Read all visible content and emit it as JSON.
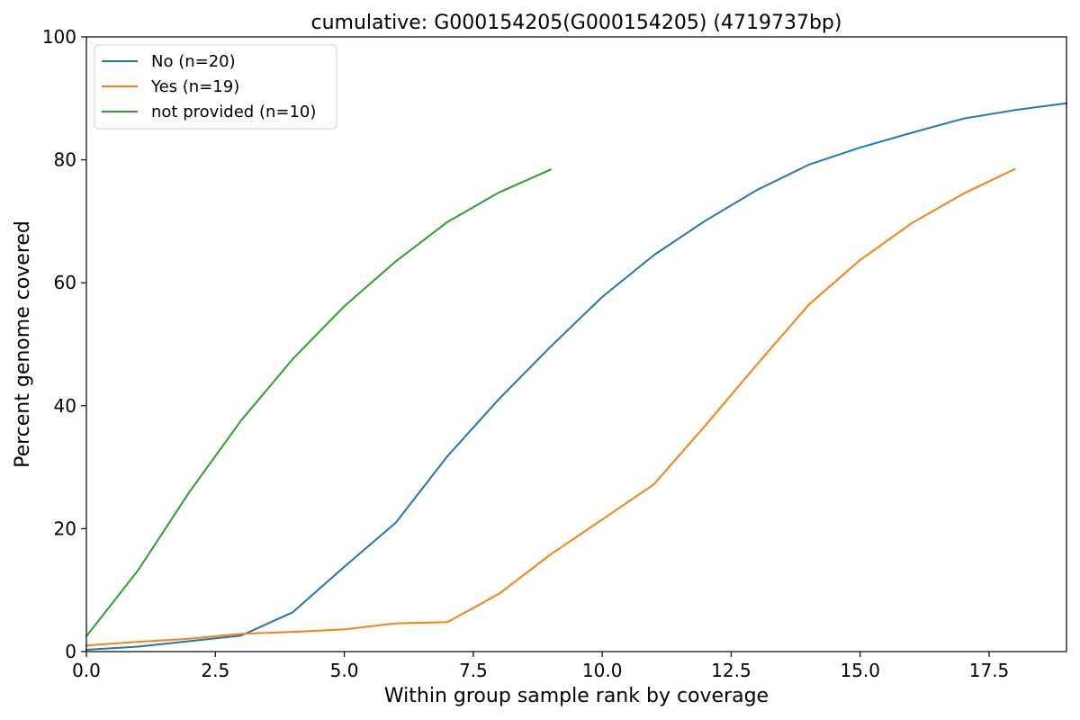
{
  "chart_data": {
    "type": "line",
    "title": "cumulative: G000154205(G000154205) (4719737bp)",
    "xlabel": "Within group sample rank by coverage",
    "ylabel": "Percent genome covered",
    "xlim": [
      0,
      19
    ],
    "ylim": [
      0,
      100
    ],
    "xticks": [
      "0.0",
      "2.5",
      "5.0",
      "7.5",
      "10.0",
      "12.5",
      "15.0",
      "17.5"
    ],
    "yticks": [
      "0",
      "20",
      "40",
      "60",
      "80",
      "100"
    ],
    "grid": false,
    "legend_position": "top-left",
    "series": [
      {
        "name": "No (n=20)",
        "color": "#1f77b4",
        "x": [
          0,
          1,
          2,
          3,
          4,
          5,
          6,
          7,
          8,
          9,
          10,
          11,
          12,
          13,
          14,
          15,
          16,
          17,
          18,
          19
        ],
        "y": [
          0.3,
          0.8,
          1.7,
          2.6,
          6.4,
          13.8,
          21.0,
          31.8,
          41.1,
          49.6,
          57.7,
          64.5,
          70.1,
          75.1,
          79.2,
          82.0,
          84.4,
          86.7,
          88.1,
          89.2
        ]
      },
      {
        "name": "Yes (n=19)",
        "color": "#ff7f0e",
        "x": [
          0,
          1,
          2,
          3,
          4,
          5,
          6,
          7,
          8,
          9,
          10,
          11,
          12,
          13,
          14,
          15,
          16,
          17,
          18
        ],
        "y": [
          1.0,
          1.6,
          2.1,
          2.9,
          3.2,
          3.6,
          4.6,
          4.8,
          9.4,
          15.8,
          21.5,
          27.2,
          36.8,
          46.7,
          56.4,
          63.7,
          69.7,
          74.5,
          78.5
        ]
      },
      {
        "name": "not provided (n=10)",
        "color": "#2ca02c",
        "x": [
          0,
          1,
          2,
          3,
          4,
          5,
          6,
          7,
          8,
          9
        ],
        "y": [
          2.5,
          13.2,
          26.0,
          37.6,
          47.6,
          56.2,
          63.5,
          69.9,
          74.7,
          78.4
        ]
      }
    ]
  }
}
